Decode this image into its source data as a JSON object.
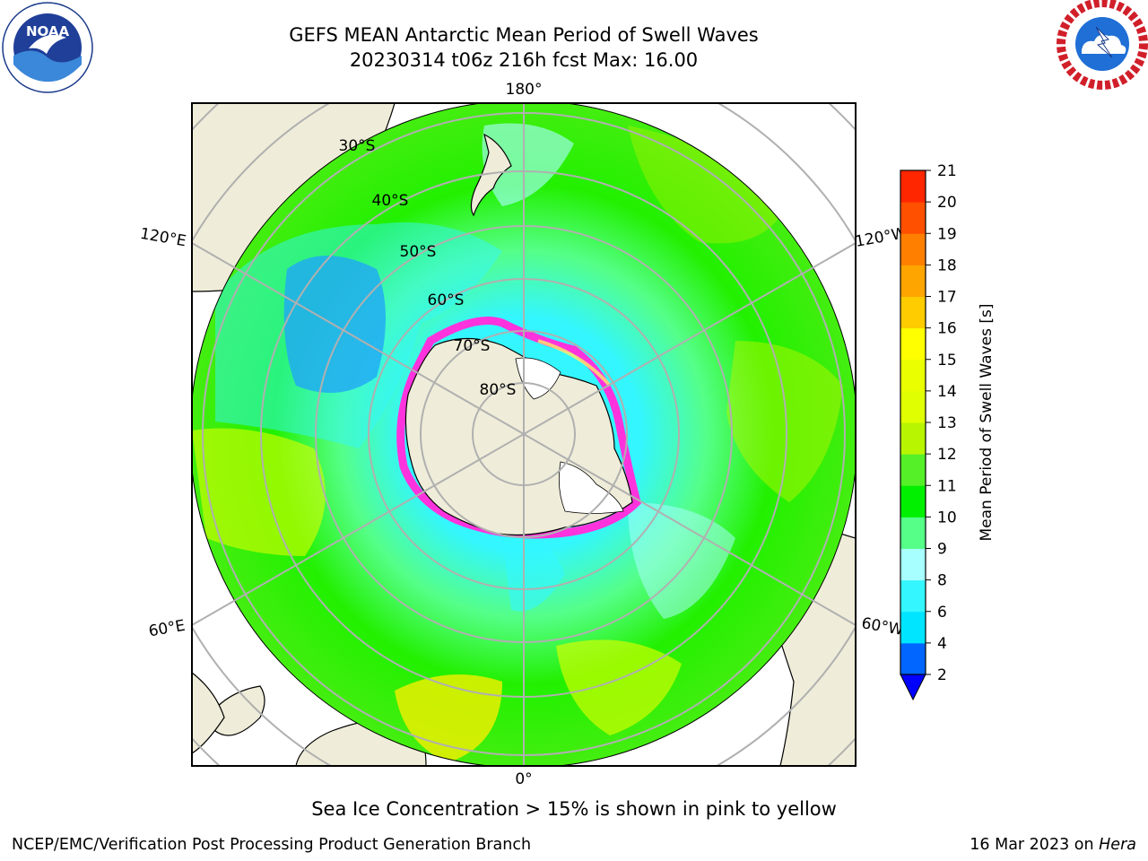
{
  "header": {
    "title_line1": "GEFS MEAN Antarctic Mean Period of Swell Waves",
    "title_line2": "20230314 t06z 216h fcst   Max: 16.00"
  },
  "logos": {
    "left_name": "NOAA",
    "right_name": "NATIONAL WEATHER SERVICE"
  },
  "map": {
    "projection": "south-polar-stereographic",
    "meridian_labels": [
      "180°",
      "120°E",
      "60°E",
      "0°",
      "60°W",
      "120°W"
    ],
    "latitude_labels": [
      "30°S",
      "40°S",
      "50°S",
      "60°S",
      "70°S",
      "80°S"
    ]
  },
  "colorbar": {
    "label": "Mean Period of Swell Waves [s]",
    "ticks": [
      "2",
      "4",
      "6",
      "8",
      "9",
      "10",
      "11",
      "12",
      "13",
      "14",
      "15",
      "16",
      "17",
      "18",
      "19",
      "20",
      "21"
    ],
    "colors": [
      "#0066ff",
      "#00e5ff",
      "#33f6ff",
      "#a8ffff",
      "#55ff88",
      "#00f000",
      "#55f028",
      "#b8f500",
      "#e0ff00",
      "#eaff00",
      "#ffff00",
      "#ffcc00",
      "#ffa500",
      "#ff8000",
      "#ff5000",
      "#ff2600",
      "#ff0000"
    ],
    "extend_low_color": "#0000ff"
  },
  "legend_colors": {
    "land": "#efedd9",
    "sea_ice_low": "#ff33dd",
    "sea_ice_high": "#ffee66",
    "deep_blue_region": "#0e5cf0"
  },
  "footer": {
    "note": "Sea Ice Concentration > 15% is shown in pink to yellow",
    "credit_left": "NCEP/EMC/Verification Post Processing Product Generation Branch",
    "credit_date": "16 Mar 2023 on ",
    "credit_host": "Hera"
  }
}
